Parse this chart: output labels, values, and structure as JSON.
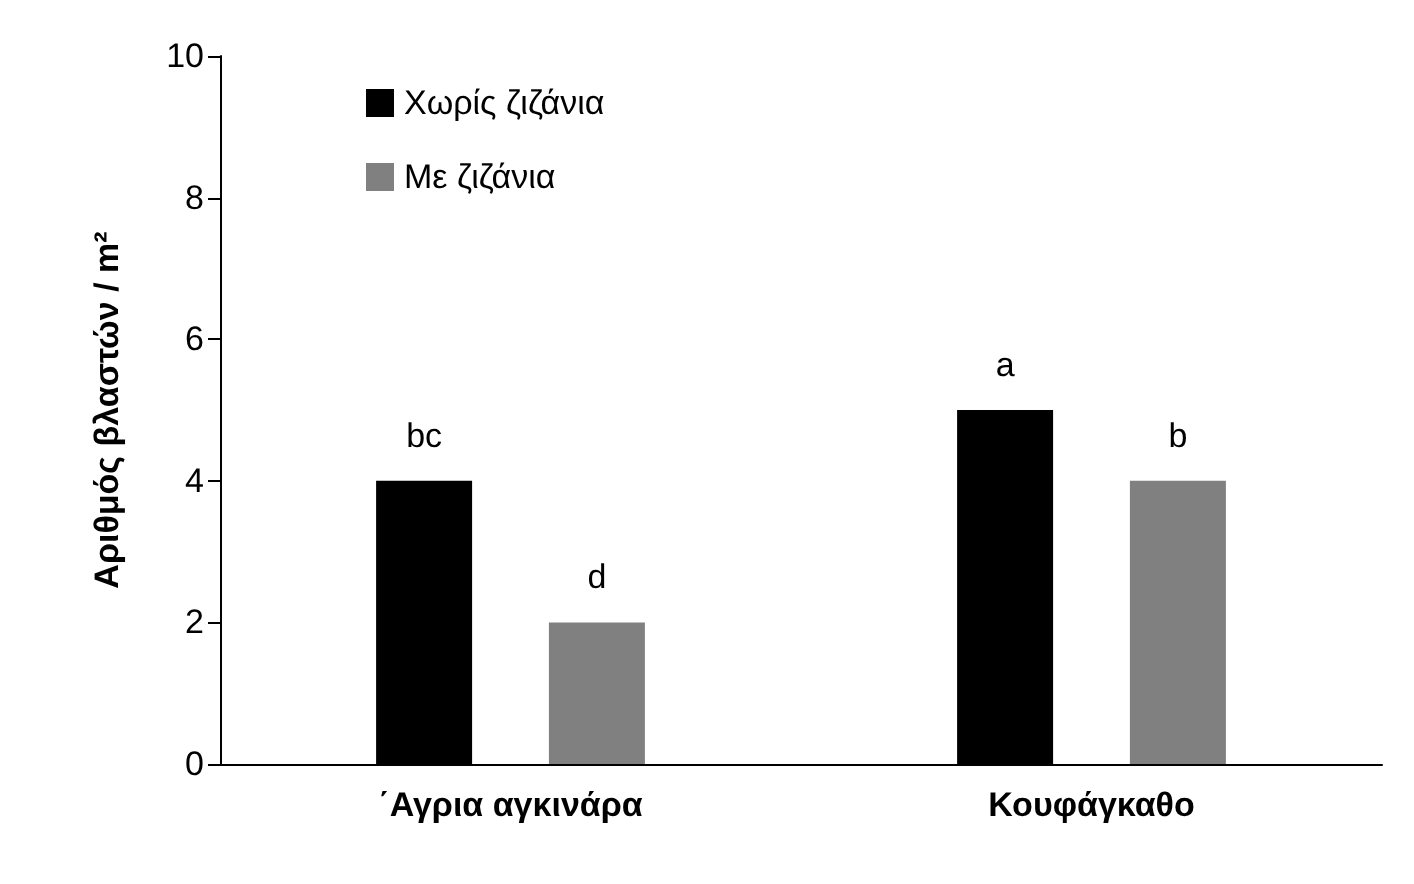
{
  "chart_data": {
    "type": "bar",
    "ylabel": "Αριθμός βλαστών / m²",
    "categories": [
      "΄Αγρια αγκινάρα",
      "Κουφάγκαθο"
    ],
    "series": [
      {
        "name": "Χωρίς ζιζάνια",
        "color": "#000000",
        "values": [
          4,
          5
        ],
        "value_labels": [
          "bc",
          "a"
        ]
      },
      {
        "name": "Με ζιζάνια",
        "color": "#808080",
        "values": [
          2,
          4
        ],
        "value_labels": [
          "d",
          "b"
        ]
      }
    ],
    "ylim": [
      0,
      10
    ],
    "yticks": [
      0,
      2,
      4,
      6,
      8,
      10
    ],
    "grid": false,
    "legend": "top left"
  }
}
